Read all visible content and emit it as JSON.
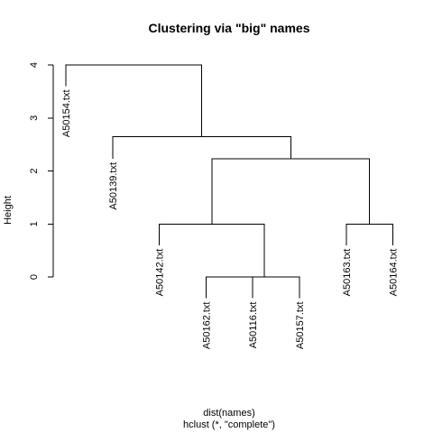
{
  "chart_data": {
    "type": "dendrogram",
    "title": "Clustering via \"big\" names",
    "xlabel": "dist(names)",
    "sub": "hclust (*, \"complete\")",
    "ylabel": "Height",
    "ylim": [
      0,
      4
    ],
    "yticks": [
      0,
      1,
      2,
      3,
      4
    ],
    "grid": false,
    "leaves": [
      {
        "label": "A50154.txt",
        "leaf_height": 3.6
      },
      {
        "label": "A50139.txt",
        "leaf_height": 2.23
      },
      {
        "label": "A50142.txt",
        "leaf_height": 0.6
      },
      {
        "label": "A50162.txt",
        "leaf_height": -0.4
      },
      {
        "label": "A50116.txt",
        "leaf_height": -0.4
      },
      {
        "label": "A50157.txt",
        "leaf_height": -0.4
      },
      {
        "label": "A50163.txt",
        "leaf_height": 0.6
      },
      {
        "label": "A50164.txt",
        "leaf_height": 0.6
      }
    ],
    "merges": [
      {
        "left": 4,
        "right": 5,
        "height": 0.0
      },
      {
        "left": "m0",
        "right": 6,
        "height": 0.0
      },
      {
        "left": 3,
        "right": "m1",
        "height": 1.0
      },
      {
        "left": 7,
        "right": 8,
        "height": 1.0
      },
      {
        "left": "m2",
        "right": "m3",
        "height": 2.23
      },
      {
        "left": 2,
        "right": "m4",
        "height": 2.65
      },
      {
        "left": 1,
        "right": "m5",
        "height": 4.0
      }
    ]
  }
}
